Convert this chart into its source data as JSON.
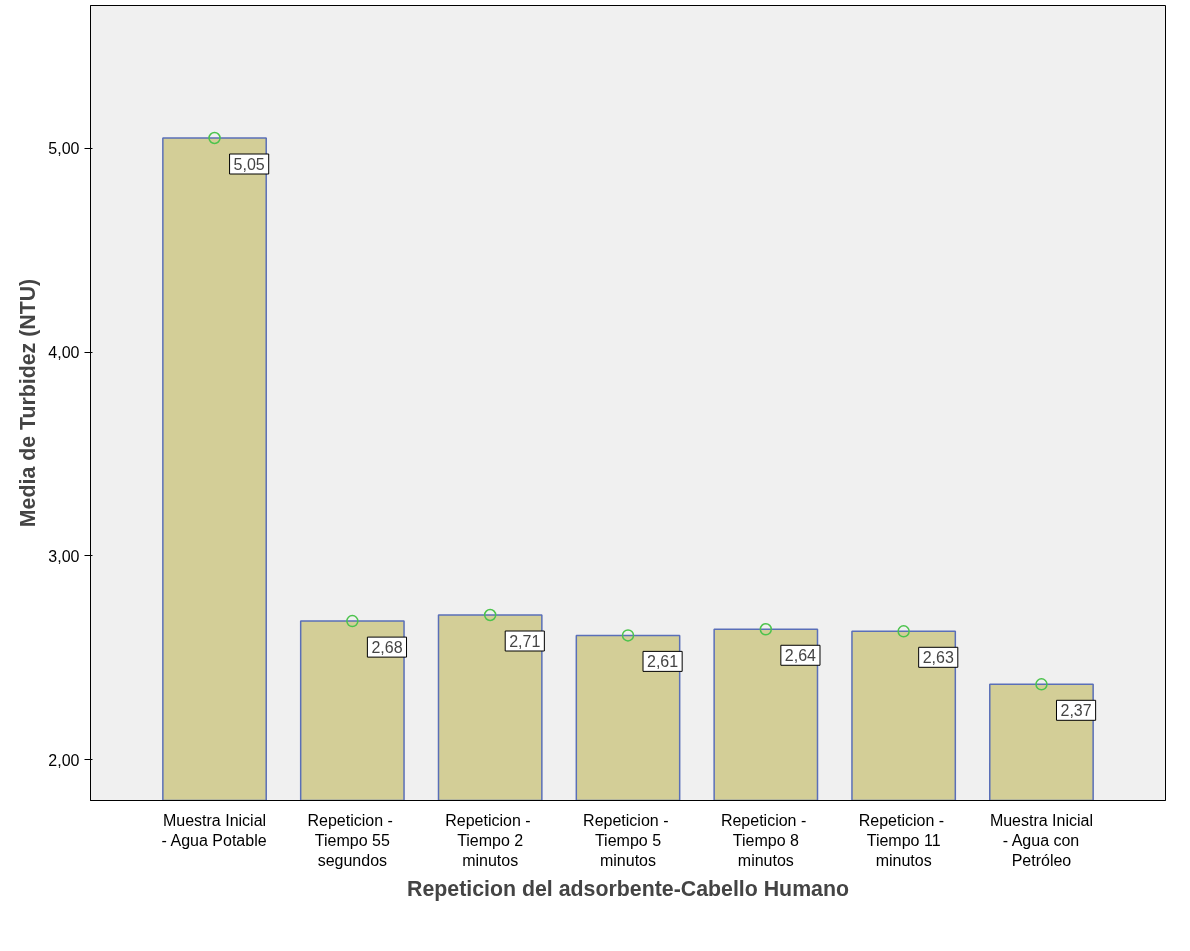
{
  "chart_data": {
    "type": "bar",
    "xlabel": "Repeticion del adsorbente-Cabello Humano",
    "ylabel": "Media de Turbidez (NTU)",
    "categories": [
      "Muestra Inicial\n- Agua Potable",
      "Repeticion  -\nTiempo 55\nsegundos",
      "Repeticion  -\nTiempo 2\nminutos",
      "Repeticion  -\nTiempo 5\nminutos",
      "Repeticion  -\nTiempo 8\nminutos",
      "Repeticion  -\nTiempo 11\nminutos",
      "Muestra Inicial\n- Agua con\nPetróleo"
    ],
    "series": [
      {
        "color": "#d3ce97",
        "values": [
          5.05,
          2.68,
          2.71,
          2.61,
          2.64,
          2.63,
          2.37
        ],
        "value_labels": [
          "5,05",
          "2,68",
          "2,71",
          "2,61",
          "2,64",
          "2,63",
          "2,37"
        ]
      },
      {
        "type": "scatter",
        "color": "#4cc34c",
        "marker": "circle",
        "x": [
          "Muestra Inicial\n- Agua Potable",
          "Repeticion  -\nTiempo 55\nsegundos",
          "Repeticion  -\nTiempo 2\nminutos",
          "Repeticion  -\nTiempo 5\nminutos",
          "Repeticion  -\nTiempo 8\nminutos",
          "Repeticion  -\nTiempo 11\nminutos",
          "Muestra Inicial\n- Agua con\nPetróleo"
        ],
        "values": [
          5.05,
          2.68,
          2.71,
          2.61,
          2.64,
          2.63,
          2.37
        ]
      }
    ],
    "grid": false,
    "ylim": [
      1.8,
      5.7
    ],
    "yticks": [
      {
        "value": 2,
        "label": "2,00"
      },
      {
        "value": 3,
        "label": "3,00"
      },
      {
        "value": 4,
        "label": "4,00"
      },
      {
        "value": 5,
        "label": "5,00"
      }
    ]
  }
}
